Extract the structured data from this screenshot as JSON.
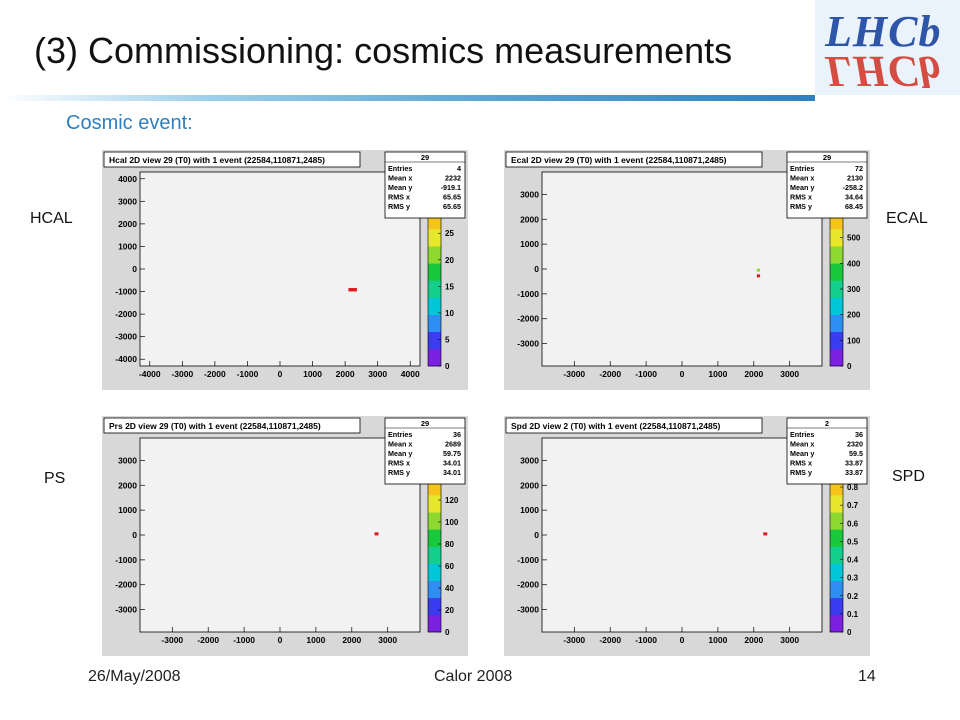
{
  "slide": {
    "title": "(3) Commissioning: cosmics measurements",
    "subtitle": "Cosmic event:",
    "logo_text": "LHCb",
    "footer": {
      "date": "26/May/2008",
      "conference": "Calor 2008",
      "page": "14"
    }
  },
  "labels": {
    "hcal": "HCAL",
    "ecal": "ECAL",
    "ps": "PS",
    "spd": "SPD"
  },
  "colors": {
    "marker": "#e0161b",
    "frame_bg": "#d8d8d8",
    "plot_bg": "#f2f2f2"
  },
  "chart_data": [
    {
      "type": "heatmap",
      "title": "Hcal 2D view 29 (T0)  with 1 event  (22584,110871,2485)",
      "xlim": [
        -4300,
        4300
      ],
      "ylim": [
        -4300,
        4300
      ],
      "xticks": [
        "-4000",
        "-3000",
        "-2000",
        "-1000",
        "0",
        "1000",
        "2000",
        "3000",
        "4000"
      ],
      "yticks": [
        "4000",
        "3000",
        "2000",
        "1000",
        "0",
        "-1000",
        "-2000",
        "-3000",
        "-4000"
      ],
      "colorbar": {
        "min": 0,
        "max": 29,
        "ticks": [
          "25",
          "20",
          "15",
          "10",
          "5",
          "0"
        ]
      },
      "stats": {
        "name": "29",
        "entries": "4",
        "mean_x": "2232",
        "mean_y": "-919.1",
        "rms_x": "65.65",
        "rms_y": "65.65"
      },
      "points": [
        {
          "x": 2232,
          "y": -919,
          "w": 260,
          "h": 150,
          "color": "#e0161b"
        }
      ]
    },
    {
      "type": "heatmap",
      "title": "Ecal 2D view 29 (T0)  with 1 event  (22584,110871,2485)",
      "xlim": [
        -3900,
        3900
      ],
      "ylim": [
        -3900,
        3900
      ],
      "xticks": [
        "-3000",
        "-2000",
        "-1000",
        "0",
        "1000",
        "2000",
        "3000"
      ],
      "yticks": [
        "3000",
        "2000",
        "1000",
        "0",
        "-1000",
        "-2000",
        "-3000"
      ],
      "colorbar": {
        "min": 0,
        "max": 600,
        "ticks": [
          "500",
          "400",
          "300",
          "200",
          "100",
          "0"
        ]
      },
      "stats": {
        "name": "29",
        "entries": "72",
        "mean_x": "2130",
        "mean_y": "-258.2",
        "rms_x": "34.64",
        "rms_y": "68.45"
      },
      "points": [
        {
          "x": 2130,
          "y": -30,
          "w": 90,
          "h": 90,
          "color": "#8fd83a"
        },
        {
          "x": 2130,
          "y": -260,
          "w": 90,
          "h": 90,
          "color": "#e0161b"
        }
      ]
    },
    {
      "type": "heatmap",
      "title": "Prs 2D view 29 (T0)  with 1 event  (22584,110871,2485)",
      "xlim": [
        -3900,
        3900
      ],
      "ylim": [
        -3900,
        3900
      ],
      "xticks": [
        "-3000",
        "-2000",
        "-1000",
        "0",
        "1000",
        "2000",
        "3000"
      ],
      "yticks": [
        "3000",
        "2000",
        "1000",
        "0",
        "-1000",
        "-2000",
        "-3000"
      ],
      "colorbar": {
        "min": 0,
        "max": 140,
        "ticks": [
          "120",
          "100",
          "80",
          "60",
          "40",
          "20",
          "0"
        ]
      },
      "stats": {
        "name": "29",
        "entries": "36",
        "mean_x": "2689",
        "mean_y": "59.75",
        "rms_x": "34.01",
        "rms_y": "34.01"
      },
      "points": [
        {
          "x": 2689,
          "y": 60,
          "w": 110,
          "h": 90,
          "color": "#e0161b"
        }
      ]
    },
    {
      "type": "heatmap",
      "title": "Spd 2D view 2 (T0)  with 1 event  (22584,110871,2485)",
      "xlim": [
        -3900,
        3900
      ],
      "ylim": [
        -3900,
        3900
      ],
      "xticks": [
        "-3000",
        "-2000",
        "-1000",
        "0",
        "1000",
        "2000",
        "3000"
      ],
      "yticks": [
        "3000",
        "2000",
        "1000",
        "0",
        "-1000",
        "-2000",
        "-3000"
      ],
      "colorbar": {
        "min": 0,
        "max": 0.85,
        "ticks": [
          "0.8",
          "0.7",
          "0.6",
          "0.5",
          "0.4",
          "0.3",
          "0.2",
          "0.1",
          "0"
        ]
      },
      "stats": {
        "name": "2",
        "entries": "36",
        "mean_x": "2320",
        "mean_y": "59.5",
        "rms_x": "33.87",
        "rms_y": "33.87"
      },
      "points": [
        {
          "x": 2320,
          "y": 60,
          "w": 110,
          "h": 90,
          "color": "#e0161b"
        }
      ]
    }
  ]
}
